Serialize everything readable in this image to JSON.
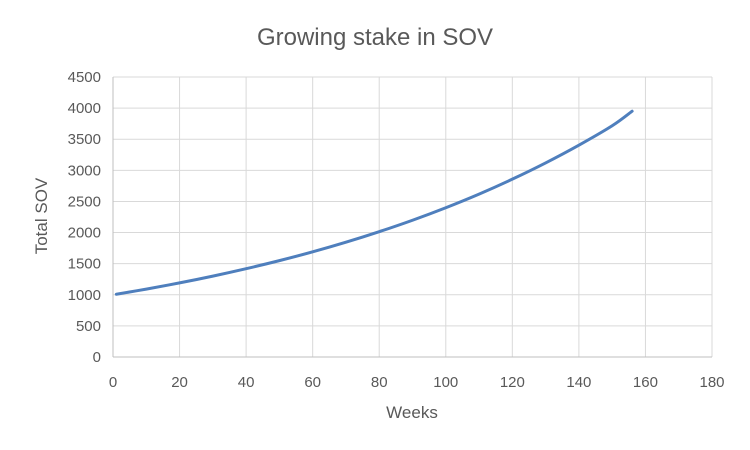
{
  "chart_data": {
    "type": "line",
    "title": "Growing stake in SOV",
    "xlabel": "Weeks",
    "ylabel": "Total SOV",
    "xlim": [
      0,
      180
    ],
    "ylim": [
      0,
      4500
    ],
    "x_ticks": [
      0,
      20,
      40,
      60,
      80,
      100,
      120,
      140,
      160,
      180
    ],
    "y_ticks": [
      0,
      500,
      1000,
      1500,
      2000,
      2500,
      3000,
      3500,
      4000,
      4500
    ],
    "grid": true,
    "legend": "none",
    "series": [
      {
        "name": "Total SOV",
        "color": "#4f7fbd",
        "x": [
          1,
          10,
          20,
          30,
          40,
          50,
          60,
          70,
          80,
          90,
          100,
          110,
          120,
          130,
          140,
          150,
          156
        ],
        "values": [
          1009,
          1091,
          1191,
          1300,
          1419,
          1549,
          1690,
          1845,
          2014,
          2198,
          2399,
          2618,
          2858,
          3119,
          3404,
          3716,
          3950
        ]
      }
    ]
  }
}
